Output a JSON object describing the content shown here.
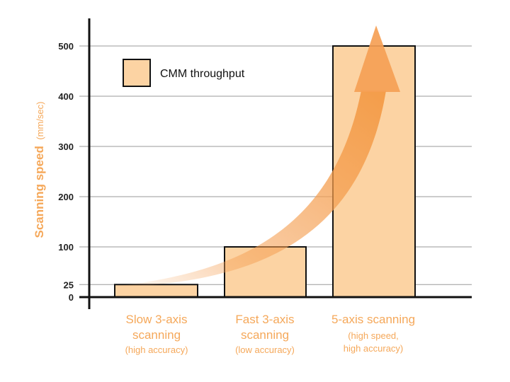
{
  "chart_data": {
    "type": "bar",
    "categories": [
      {
        "lines": [
          "Slow 3-axis",
          "scanning"
        ],
        "note": "(high accuracy)"
      },
      {
        "lines": [
          "Fast 3-axis",
          "scanning"
        ],
        "note": "(low accuracy)"
      },
      {
        "lines": [
          "5-axis scanning"
        ],
        "note": "(high speed,\nhigh accuracy)"
      }
    ],
    "values": [
      25,
      100,
      500
    ],
    "ylabel": "Scanning speed",
    "ylabel_unit": "(mm/sec)",
    "ylim": [
      0,
      550
    ],
    "yticks": [
      0,
      25,
      100,
      200,
      300,
      400,
      500
    ],
    "grid": true,
    "legend": {
      "label": "CMM throughput",
      "placement": "top-left"
    },
    "annotation": "curved-trend-arrow",
    "colors": {
      "bar_fill": "#fcd3a3",
      "bar_edge": "#111111",
      "accent": "#f5a85a",
      "arrow": "#f5a055",
      "grid": "#9a9a9a"
    }
  }
}
